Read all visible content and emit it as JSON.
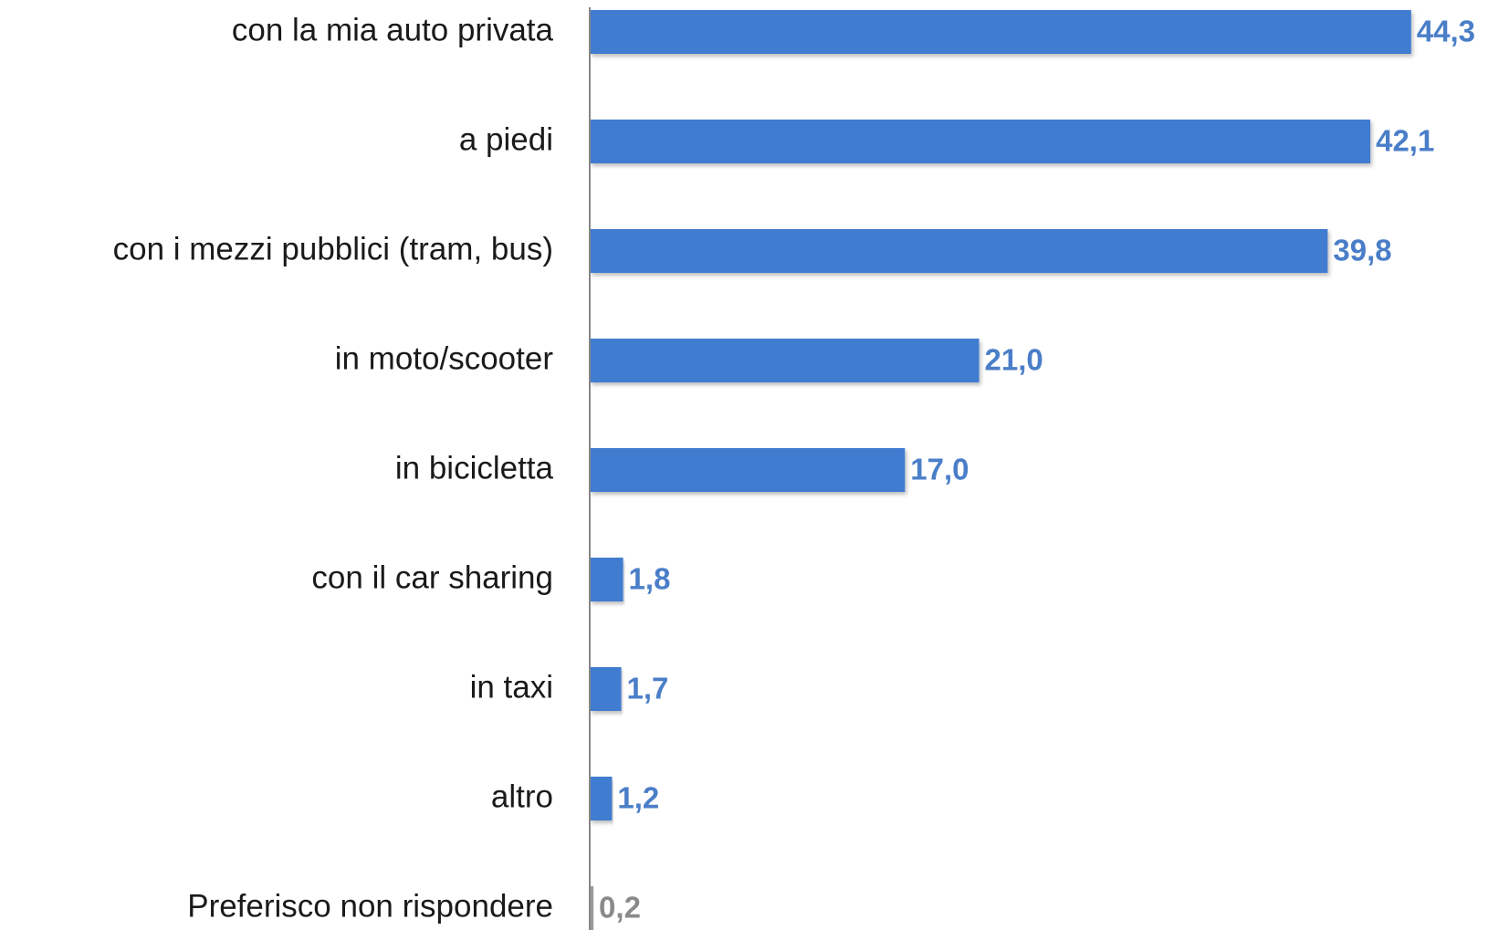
{
  "chart_data": {
    "type": "hbar",
    "categories": [
      "con la mia auto privata",
      "a piedi",
      "con i mezzi pubblici (tram, bus)",
      "in moto/scooter",
      "in bicicletta",
      "con il car sharing",
      "in taxi",
      "altro",
      "Preferisco non rispondere"
    ],
    "values": [
      44.3,
      42.1,
      39.8,
      21.0,
      17.0,
      1.8,
      1.7,
      1.2,
      0.2
    ],
    "value_labels": [
      "44,3",
      "42,1",
      "39,8",
      "21,0",
      "17,0",
      "1,8",
      "1,7",
      "1,2",
      "0,2"
    ],
    "colors": [
      "#3f7bd0",
      "#3f7bd0",
      "#3f7bd0",
      "#3f7bd0",
      "#3f7bd0",
      "#3f7bd0",
      "#3f7bd0",
      "#3f7bd0",
      "#9a9a9a"
    ],
    "label_colors": [
      "#4a7ec8",
      "#4a7ec8",
      "#4a7ec8",
      "#4a7ec8",
      "#4a7ec8",
      "#4a7ec8",
      "#4a7ec8",
      "#4a7ec8",
      "#8a8a8a"
    ],
    "xlim": [
      0,
      45
    ]
  }
}
